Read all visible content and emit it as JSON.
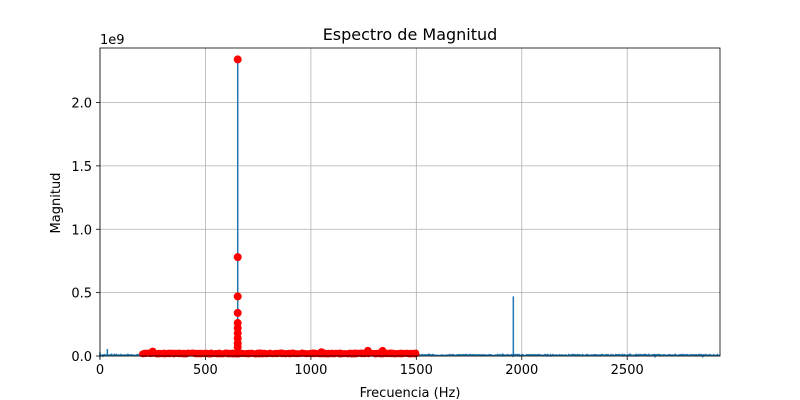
{
  "chart_data": {
    "type": "line",
    "title": "Espectro de Magnitud",
    "xlabel": "Frecuencia (Hz)",
    "ylabel": "Magnitud",
    "y_scale_label": "1e9",
    "xlim": [
      0,
      2940
    ],
    "ylim": [
      0,
      2.43
    ],
    "x_ticks": [
      0,
      500,
      1000,
      1500,
      2000,
      2500
    ],
    "x_tick_labels": [
      "0",
      "500",
      "1000",
      "1500",
      "2000",
      "2500"
    ],
    "y_ticks": [
      0.0,
      0.5,
      1.0,
      1.5,
      2.0
    ],
    "y_tick_labels": [
      "0.0",
      "0.5",
      "1.0",
      "1.5",
      "2.0"
    ],
    "grid": true,
    "series": [
      {
        "type": "line",
        "color": "#1f77b4",
        "spikes": [
          {
            "x": 0,
            "y": 0.03
          },
          {
            "x": 15,
            "y": 0.015
          },
          {
            "x": 35,
            "y": 0.055
          },
          {
            "x": 55,
            "y": 0.02
          },
          {
            "x": 200,
            "y": 0.015
          },
          {
            "x": 653,
            "y": 2.34
          },
          {
            "x": 1560,
            "y": 0.02
          },
          {
            "x": 1960,
            "y": 0.47
          },
          {
            "x": 2630,
            "y": 0.012
          },
          {
            "x": 2860,
            "y": 0.01
          }
        ],
        "baseline": 0.008
      },
      {
        "type": "scatter",
        "color": "#ff0000",
        "marker": "circle",
        "x_range": [
          200,
          1500
        ],
        "baseline": 0.02,
        "highlights": [
          {
            "x": 653,
            "y": 2.34
          },
          {
            "x": 653,
            "y": 0.78
          },
          {
            "x": 653,
            "y": 0.47
          },
          {
            "x": 653,
            "y": 0.34
          },
          {
            "x": 653,
            "y": 0.26
          },
          {
            "x": 653,
            "y": 0.22
          },
          {
            "x": 653,
            "y": 0.18
          },
          {
            "x": 653,
            "y": 0.14
          },
          {
            "x": 653,
            "y": 0.1
          },
          {
            "x": 653,
            "y": 0.07
          },
          {
            "x": 250,
            "y": 0.035
          },
          {
            "x": 1050,
            "y": 0.03
          },
          {
            "x": 1270,
            "y": 0.04
          },
          {
            "x": 1340,
            "y": 0.04
          }
        ]
      }
    ]
  }
}
